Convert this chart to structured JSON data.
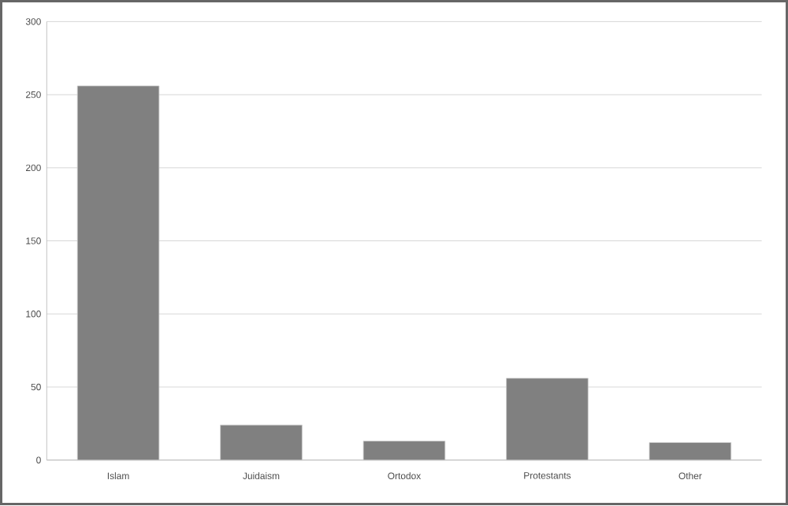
{
  "chart_data": {
    "type": "bar",
    "categories": [
      "Islam",
      "Juidaism",
      "Ortodox",
      "Protestants",
      "Other"
    ],
    "values": [
      256,
      24,
      13,
      56,
      12
    ],
    "color": "#808080",
    "ylim": [
      0,
      300
    ],
    "yticks": [
      0,
      50,
      100,
      150,
      200,
      250,
      300
    ],
    "grid": "y"
  }
}
